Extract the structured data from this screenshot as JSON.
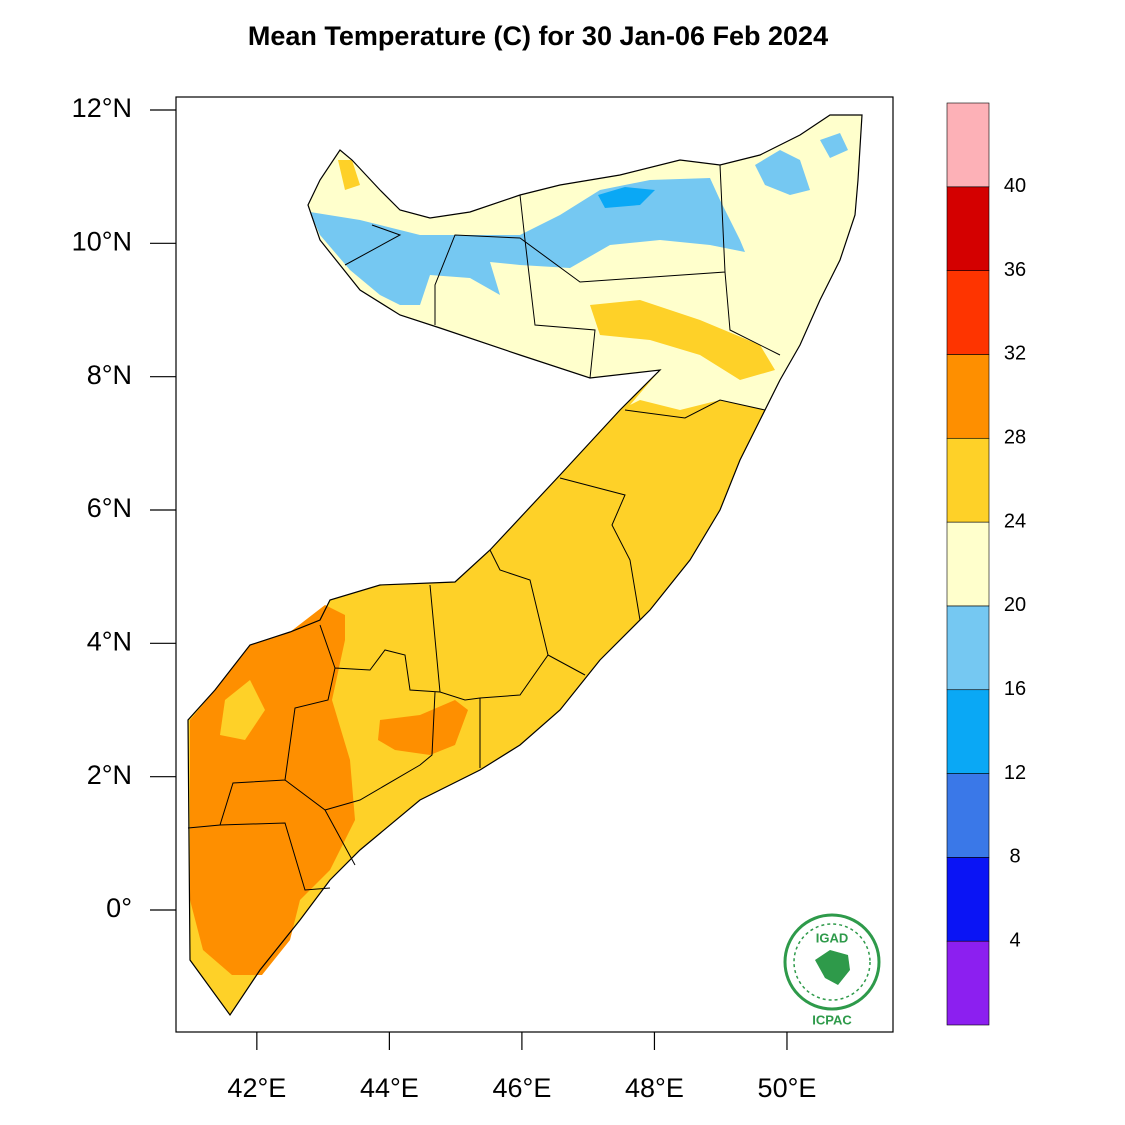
{
  "map": {
    "title": "Mean Temperature (C) for 30 Jan-06 Feb 2024",
    "lon_range": [
      40.78,
      51.6
    ],
    "lat_range": [
      -1.83,
      12.195
    ],
    "lon_ticks": [
      {
        "value": 42,
        "label": "42°E"
      },
      {
        "value": 44,
        "label": "44°E"
      },
      {
        "value": 46,
        "label": "46°E"
      },
      {
        "value": 48,
        "label": "48°E"
      },
      {
        "value": 50,
        "label": "50°E"
      }
    ],
    "lat_ticks": [
      {
        "value": 0,
        "label": "0°"
      },
      {
        "value": 2,
        "label": "2°N"
      },
      {
        "value": 4,
        "label": "4°N"
      },
      {
        "value": 6,
        "label": "6°N"
      },
      {
        "value": 8,
        "label": "8°N"
      },
      {
        "value": 10,
        "label": "10°N"
      },
      {
        "value": 12,
        "label": "12°N"
      }
    ],
    "colorbar": {
      "levels": [
        4,
        8,
        12,
        16,
        20,
        24,
        28,
        32,
        36,
        40
      ],
      "colors": [
        "#8c1ff0",
        "#0a14f5",
        "#3a78e8",
        "#0aa8f5",
        "#75c8f2",
        "#ffffcc",
        "#fed128",
        "#fe8f00",
        "#fe3400",
        "#d40000",
        "#fdb1b7"
      ]
    },
    "logo": {
      "top": "IGAD",
      "bottom": "ICPAC"
    }
  }
}
